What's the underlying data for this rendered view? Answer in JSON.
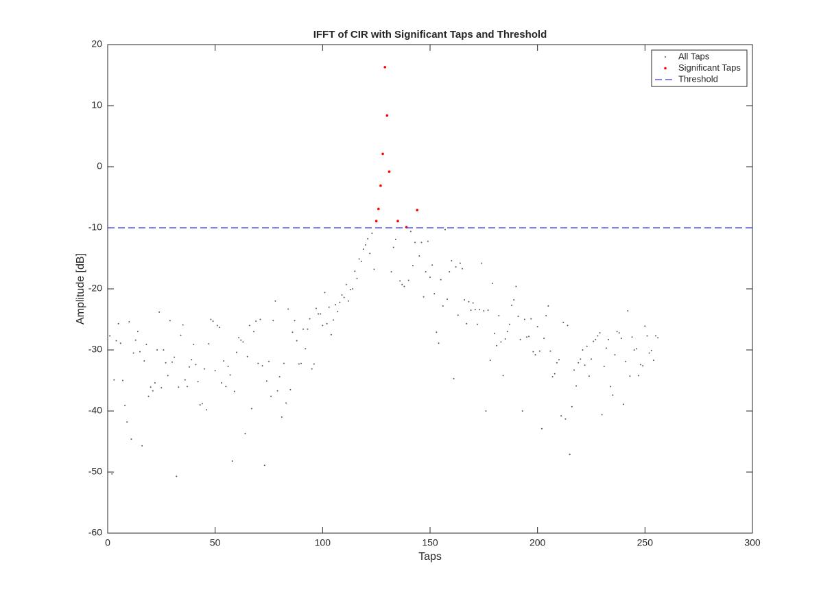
{
  "chart_data": {
    "type": "scatter",
    "title": "IFFT of CIR with Significant Taps and Threshold",
    "xlabel": "Taps",
    "ylabel": "Amplitude [dB]",
    "xlim": [
      0,
      300
    ],
    "xticks": [
      0,
      50,
      100,
      150,
      200,
      250,
      300
    ],
    "ylim": [
      -60,
      20
    ],
    "yticks": [
      -60,
      -50,
      -40,
      -30,
      -20,
      -10,
      0,
      10,
      20
    ],
    "legend": "upper right",
    "series": [
      {
        "name": "All Taps",
        "color": "#555555",
        "x": [
          1,
          2,
          3,
          4,
          5,
          6,
          7,
          8,
          9,
          10,
          11,
          12,
          13,
          14,
          15,
          16,
          17,
          18,
          19,
          20,
          21,
          22,
          23,
          24,
          25,
          26,
          27,
          28,
          29,
          30,
          31,
          32,
          33,
          34,
          35,
          36,
          37,
          38,
          39,
          40,
          41,
          42,
          43,
          44,
          45,
          46,
          47,
          48,
          49,
          50,
          51,
          52,
          53,
          54,
          55,
          56,
          57,
          58,
          59,
          60,
          61,
          62,
          63,
          64,
          65,
          66,
          67,
          68,
          69,
          70,
          71,
          72,
          73,
          74,
          75,
          76,
          77,
          78,
          79,
          80,
          81,
          82,
          83,
          84,
          85,
          86,
          87,
          88,
          89,
          90,
          91,
          92,
          93,
          94,
          95,
          96,
          97,
          98,
          99,
          100,
          101,
          102,
          103,
          104,
          105,
          106,
          107,
          108,
          109,
          110,
          111,
          112,
          113,
          114,
          115,
          116,
          117,
          118,
          119,
          120,
          121,
          122,
          123,
          124,
          125,
          126,
          127,
          128,
          129,
          130,
          131,
          132,
          133,
          134,
          135,
          136,
          137,
          138,
          139,
          140,
          141,
          142,
          143,
          144,
          145,
          146,
          147,
          148,
          149,
          150,
          151,
          152,
          153,
          154,
          155,
          156,
          157,
          158,
          159,
          160,
          161,
          162,
          163,
          164,
          165,
          166,
          167,
          168,
          169,
          170,
          171,
          172,
          173,
          174,
          175,
          176,
          177,
          178,
          179,
          180,
          181,
          182,
          183,
          184,
          185,
          186,
          187,
          188,
          189,
          190,
          191,
          192,
          193,
          194,
          195,
          196,
          197,
          198,
          199,
          200,
          201,
          202,
          203,
          204,
          205,
          206,
          207,
          208,
          209,
          210,
          211,
          212,
          213,
          214,
          215,
          216,
          217,
          218,
          219,
          220,
          221,
          222,
          223,
          224,
          225,
          226,
          227,
          228,
          229,
          230,
          231,
          232,
          233,
          234,
          235,
          236,
          237,
          238,
          239,
          240,
          241,
          242,
          243,
          244,
          245,
          246,
          247,
          248,
          249,
          250,
          251,
          252,
          253,
          254,
          255,
          256
        ],
        "values": [
          -27.7,
          -50.3,
          -34.9,
          -28.5,
          -25.7,
          -28.9,
          -35,
          -39.1,
          -41.8,
          -25.4,
          -44.6,
          -30.5,
          -28.4,
          -27,
          -30.3,
          -45.7,
          -31.8,
          -29.1,
          -37.6,
          -36.1,
          -36.7,
          -35.4,
          -30,
          -23.8,
          -36.2,
          -30,
          -32.1,
          -34.2,
          -25.2,
          -32,
          -31.2,
          -50.7,
          -36.1,
          -27.6,
          -25.9,
          -34.9,
          -36,
          -32.8,
          -31.6,
          -29.1,
          -32.4,
          -35.2,
          -39,
          -38.8,
          -33.1,
          -39.8,
          -29,
          -25,
          -25.3,
          -33.4,
          -26,
          -26.3,
          -35.4,
          -31.8,
          -36,
          -32.7,
          -34.1,
          -48.2,
          -36.8,
          -30.4,
          -28,
          -28.4,
          -28.7,
          -43.7,
          -31.1,
          -26,
          -39.6,
          -27,
          -25.3,
          -32.2,
          -25,
          -32.6,
          -48.9,
          -35.1,
          -31.9,
          -37.6,
          -25.2,
          -22,
          -36.7,
          -34.4,
          -41,
          -32.2,
          -38.7,
          -23.3,
          -36.5,
          -27.1,
          -25.2,
          -28.5,
          -32.3,
          -32.2,
          -26.6,
          -29.8,
          -26.6,
          -24.9,
          -33.1,
          -32.3,
          -23.2,
          -24.1,
          -24.1,
          -26,
          -20.6,
          -25.7,
          -23,
          -27.5,
          -25.1,
          -22.6,
          -23.7,
          -22.2,
          -21,
          -21.4,
          -19.3,
          -22,
          -20.1,
          -20,
          -17.1,
          -18.3,
          -15.1,
          -15.5,
          -13.5,
          -12.8,
          -11.8,
          -14.2,
          -10.9,
          -16.8,
          -8.9,
          -6.9,
          -3.1,
          2.1,
          16.3,
          8.4,
          -0.8,
          -17.2,
          -13.2,
          -11.9,
          -8.9,
          -18.7,
          -19.3,
          -19.6,
          -9.9,
          -18.6,
          -10.6,
          -16.2,
          -12.4,
          -7.1,
          -14.6,
          -12.4,
          -21.3,
          -17.2,
          -12.2,
          -18.1,
          -16.1,
          -20.8,
          -27.1,
          -28.9,
          -18.5,
          -22.8,
          -10.3,
          -21.7,
          -17.2,
          -15.4,
          -34.7,
          -16.4,
          -24.3,
          -15.8,
          -16.7,
          -21.8,
          -25.7,
          -22.1,
          -23.5,
          -22.3,
          -23.4,
          -25.8,
          -23.4,
          -15.8,
          -23.6,
          -40,
          -23.5,
          -31.7,
          -19.1,
          -27.3,
          -29.3,
          -24.4,
          -28.7,
          -34.2,
          -28.2,
          -27,
          -25.8,
          -22.7,
          -21.8,
          -19.6,
          -24.5,
          -28.3,
          -40,
          -25,
          -27.9,
          -27.8,
          -24.9,
          -30.3,
          -30.8,
          -26.2,
          -30.2,
          -42.9,
          -28.1,
          -24.4,
          -22.8,
          -30.2,
          -34.4,
          -33.9,
          -32.1,
          -31.6,
          -40.8,
          -25.5,
          -41.3,
          -26,
          -47.1,
          -39.3,
          -33.3,
          -35.9,
          -32.1,
          -31.5,
          -30,
          -32.5,
          -29.4,
          -34.3,
          -31.5,
          -28.6,
          -28.3,
          -27.7,
          -27.2,
          -40.6,
          -32.7,
          -29.7,
          -28.3,
          -36,
          -37.4,
          -30.8,
          -27,
          -27.2,
          -28.1,
          -38.9,
          -31.9,
          -23.6,
          -34.3,
          -27.9,
          -30,
          -29.8,
          -34.2,
          -32.4,
          -32.6,
          -26.1,
          -27.7,
          -30.5,
          -30.1,
          -31.7,
          -27.7,
          -28
        ]
      },
      {
        "name": "Significant Taps",
        "color": "#ff0000",
        "x": [
          125,
          126,
          127,
          128,
          129,
          130,
          131,
          135,
          139,
          144
        ],
        "values": [
          -8.9,
          -6.9,
          -3.1,
          2.1,
          16.3,
          8.4,
          -0.8,
          -8.9,
          -9.9,
          -7.1
        ]
      }
    ],
    "threshold": {
      "name": "Threshold",
      "value": -10,
      "color": "#3333ff"
    }
  }
}
